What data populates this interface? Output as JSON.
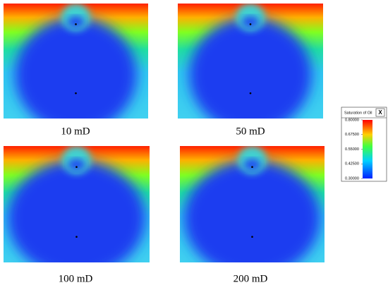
{
  "panels": [
    {
      "caption": "10 mD"
    },
    {
      "caption": "50 mD"
    },
    {
      "caption": "100 mD"
    },
    {
      "caption": "200 mD"
    }
  ],
  "legend": {
    "title": "Saturation of Oil",
    "close": "X",
    "ticks": [
      {
        "value": 0.8,
        "label": "0.80000"
      },
      {
        "value": 0.675,
        "label": "0.67500"
      },
      {
        "value": 0.55,
        "label": "0.55000"
      },
      {
        "value": 0.425,
        "label": "0.42500"
      },
      {
        "value": 0.3,
        "label": "0.30000"
      }
    ]
  }
}
